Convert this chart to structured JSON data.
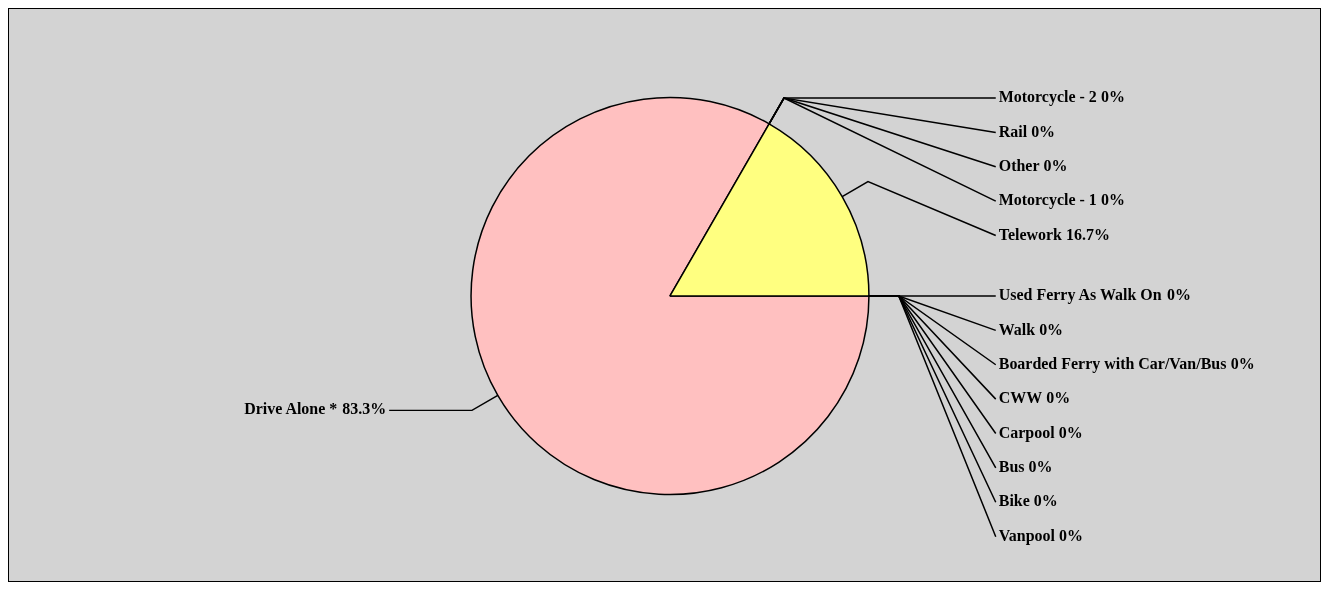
{
  "chart_data": {
    "type": "pie",
    "categories": [
      "Drive Alone *",
      "Motorcycle - 2",
      "Rail",
      "Other",
      "Motorcycle - 1",
      "Telework",
      "Used Ferry As Walk On",
      "Walk",
      "Boarded Ferry with Car/Van/Bus",
      "CWW",
      "Carpool",
      "Bus",
      "Bike",
      "Vanpool"
    ],
    "values": [
      83.3,
      0,
      0,
      0,
      0,
      16.7,
      0,
      0,
      0,
      0,
      0,
      0,
      0,
      0
    ],
    "colors": [
      "#ffc0c0",
      "#c0c0ff",
      "#c0ffc0",
      "#ffe0c0",
      "#e0c0ff",
      "#ffff80",
      "#c0ffff",
      "#ffc0ff",
      "#e0e0a0",
      "#a0e0e0",
      "#e0a0a0",
      "#a0a0e0",
      "#a0e0a0",
      "#e0c0a0"
    ],
    "value_labels": [
      "83.3%",
      "0%",
      "0%",
      "0%",
      "0%",
      "16.7%",
      "0%",
      "0%",
      "0%",
      "0%",
      "0%",
      "0%",
      "0%",
      "0%"
    ],
    "legend": false
  }
}
